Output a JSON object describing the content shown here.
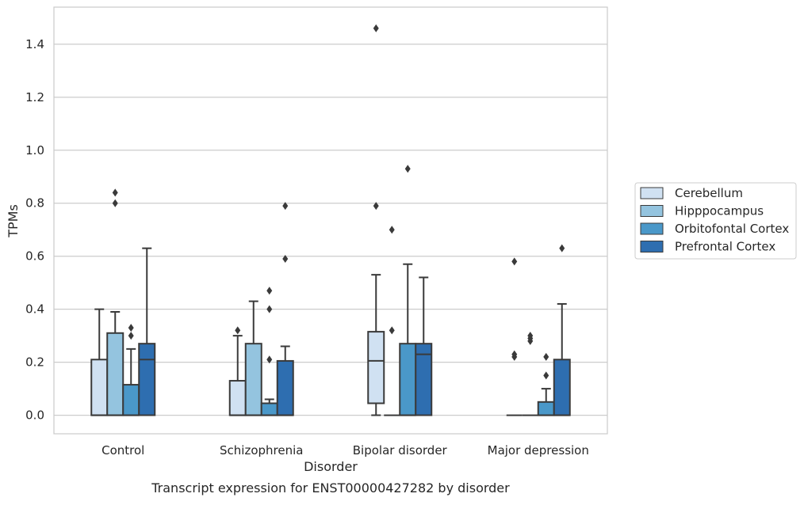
{
  "chart_data": {
    "type": "box",
    "caption": "Transcript expression for ENST00000427282 by disorder",
    "xlabel": "Disorder",
    "ylabel": "TPMs",
    "ylim": [
      -0.07,
      1.54
    ],
    "yticks": [
      0.0,
      0.2,
      0.4,
      0.6,
      0.8,
      1.0,
      1.2,
      1.4
    ],
    "ytick_labels": [
      "0.0",
      "0.2",
      "0.4",
      "0.6",
      "0.8",
      "1.0",
      "1.2",
      "1.4"
    ],
    "grid": true,
    "legend_position": "right",
    "categories": [
      "Control",
      "Schizophrenia",
      "Bipolar disorder",
      "Major depression"
    ],
    "series": [
      {
        "name": "Cerebellum",
        "color": "#d0e1f2",
        "boxes": [
          {
            "whislo": 0.0,
            "q1": 0.0,
            "med": 0.0,
            "q3": 0.21,
            "whishi": 0.4,
            "fliers": []
          },
          {
            "whislo": 0.0,
            "q1": 0.0,
            "med": 0.0,
            "q3": 0.13,
            "whishi": 0.3,
            "fliers": [
              0.32
            ]
          },
          {
            "whislo": 0.0,
            "q1": 0.045,
            "med": 0.205,
            "q3": 0.315,
            "whishi": 0.53,
            "fliers": [
              0.79,
              1.46
            ]
          },
          {
            "whislo": 0.0,
            "q1": 0.0,
            "med": 0.0,
            "q3": 0.0,
            "whishi": 0.0,
            "fliers": [
              0.22,
              0.23,
              0.58
            ]
          }
        ]
      },
      {
        "name": "Hipppocampus",
        "color": "#94c4df",
        "boxes": [
          {
            "whislo": 0.0,
            "q1": 0.0,
            "med": 0.0,
            "q3": 0.31,
            "whishi": 0.39,
            "fliers": [
              0.8,
              0.84
            ]
          },
          {
            "whislo": 0.0,
            "q1": 0.0,
            "med": 0.0,
            "q3": 0.27,
            "whishi": 0.43,
            "fliers": []
          },
          {
            "whislo": 0.0,
            "q1": 0.0,
            "med": 0.0,
            "q3": 0.0,
            "whishi": 0.0,
            "fliers": [
              0.32,
              0.7
            ]
          },
          {
            "whislo": 0.0,
            "q1": 0.0,
            "med": 0.0,
            "q3": 0.0,
            "whishi": 0.0,
            "fliers": [
              0.28,
              0.29,
              0.3
            ]
          }
        ]
      },
      {
        "name": "Orbitofontal Cortex",
        "color": "#4a98c9",
        "boxes": [
          {
            "whislo": 0.0,
            "q1": 0.0,
            "med": 0.0,
            "q3": 0.115,
            "whishi": 0.25,
            "fliers": [
              0.3,
              0.33
            ]
          },
          {
            "whislo": 0.0,
            "q1": 0.0,
            "med": 0.0,
            "q3": 0.045,
            "whishi": 0.06,
            "fliers": [
              0.21,
              0.4,
              0.47
            ]
          },
          {
            "whislo": 0.0,
            "q1": 0.0,
            "med": 0.0,
            "q3": 0.27,
            "whishi": 0.57,
            "fliers": [
              0.93
            ]
          },
          {
            "whislo": 0.0,
            "q1": 0.0,
            "med": 0.0,
            "q3": 0.05,
            "whishi": 0.1,
            "fliers": [
              0.15,
              0.22
            ]
          }
        ]
      },
      {
        "name": "Prefrontal Cortex",
        "color": "#2e6eb0",
        "boxes": [
          {
            "whislo": 0.0,
            "q1": 0.0,
            "med": 0.21,
            "q3": 0.27,
            "whishi": 0.63,
            "fliers": []
          },
          {
            "whislo": 0.0,
            "q1": 0.0,
            "med": 0.0,
            "q3": 0.205,
            "whishi": 0.26,
            "fliers": [
              0.59,
              0.79
            ]
          },
          {
            "whislo": 0.0,
            "q1": 0.0,
            "med": 0.23,
            "q3": 0.27,
            "whishi": 0.52,
            "fliers": []
          },
          {
            "whislo": 0.0,
            "q1": 0.0,
            "med": 0.0,
            "q3": 0.21,
            "whishi": 0.42,
            "fliers": [
              0.63
            ]
          }
        ]
      }
    ]
  }
}
